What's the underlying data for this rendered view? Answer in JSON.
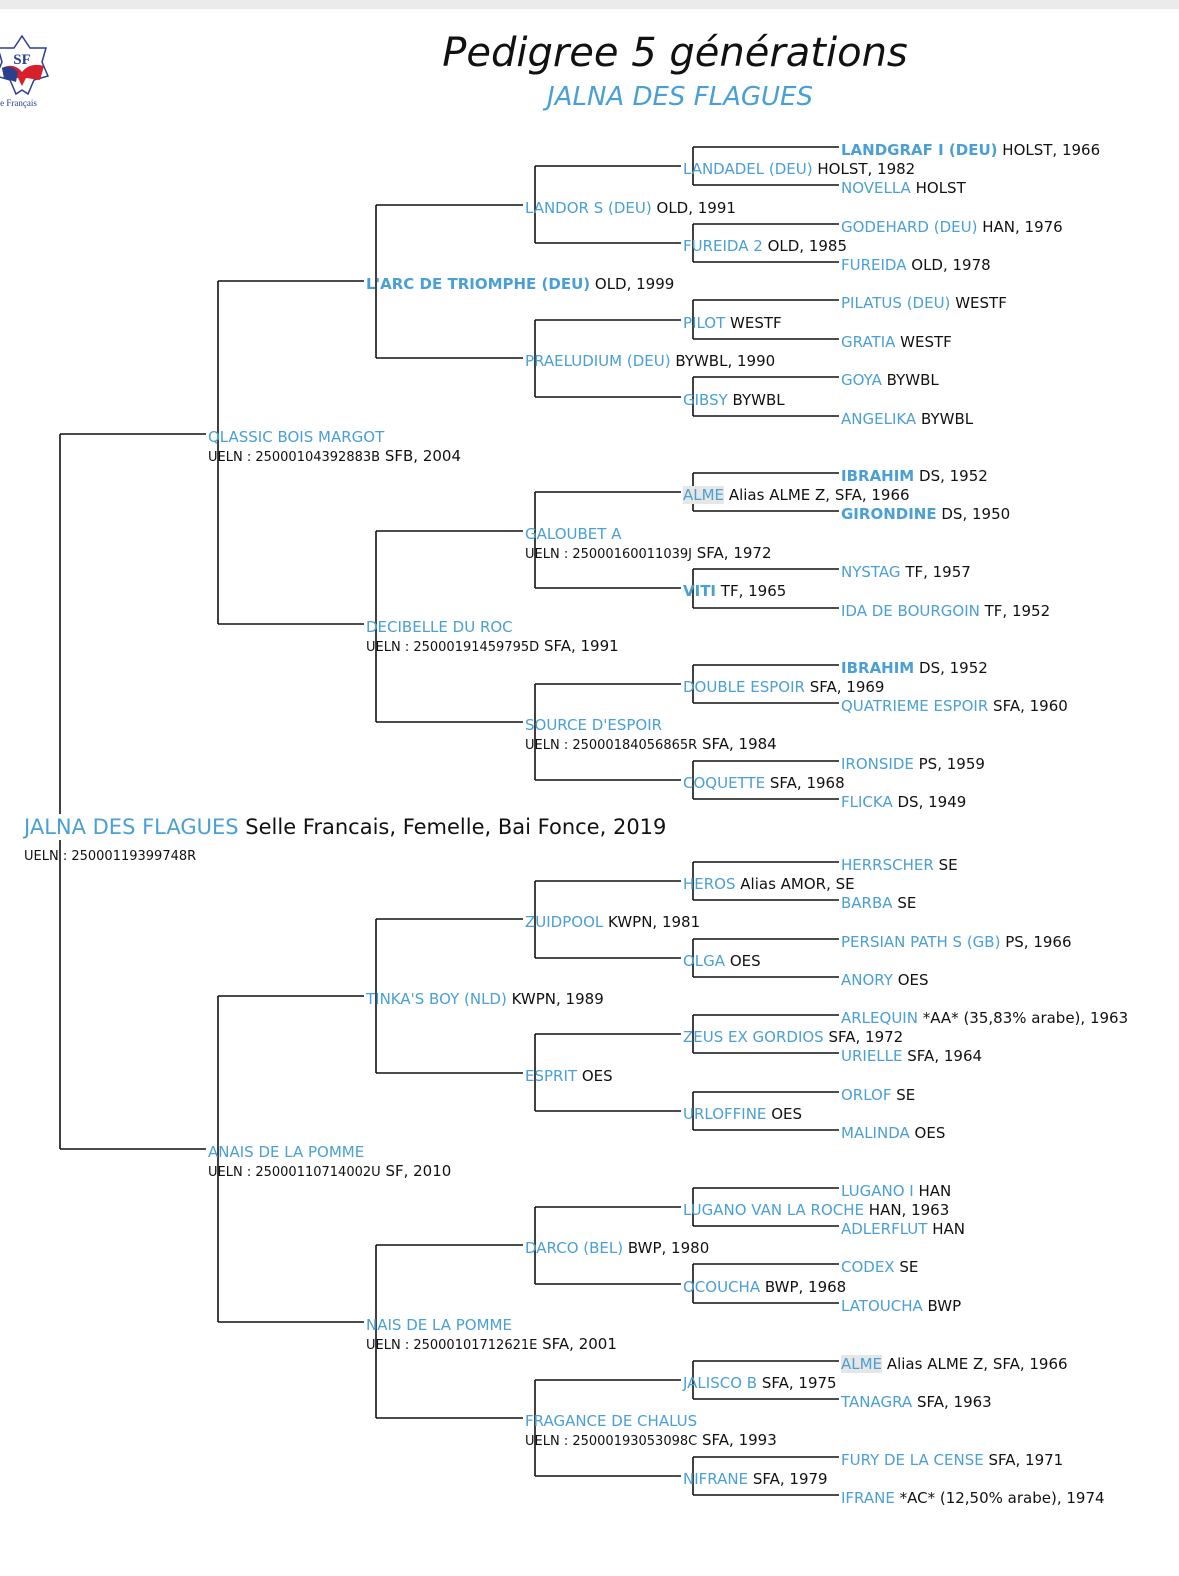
{
  "header": {
    "title": "Pedigree 5 générations",
    "subtitle": "JALNA DES FLAGUES"
  },
  "logo": {
    "text": "SF",
    "caption": "lle Français",
    "colors": {
      "blue": "#2b3f8f",
      "red": "#d6202a"
    }
  },
  "colors": {
    "name": "#4a9fd5",
    "text": "#111111",
    "line": "#111111"
  },
  "pedigree": {
    "name": "JALNA DES FLAGUES",
    "info": "Selle Francais, Femelle, Bai Fonce, 2019",
    "ueln": "UELN : 25000119399748R",
    "children": [
      {
        "name": "QLASSIC BOIS MARGOT",
        "ueln": "UELN : 25000104392883B",
        "info": "SFB, 2004",
        "children": [
          {
            "name": "L'ARC DE TRIOMPHE (DEU)",
            "bold": true,
            "info": "OLD, 1999",
            "children": [
              {
                "name": "LANDOR S (DEU)",
                "info": "OLD, 1991",
                "children": [
                  {
                    "name": "LANDADEL (DEU)",
                    "info": "HOLST, 1982",
                    "children": [
                      {
                        "name": "LANDGRAF I (DEU)",
                        "bold": true,
                        "info": "HOLST, 1966"
                      },
                      {
                        "name": "NOVELLA",
                        "info": "HOLST"
                      }
                    ]
                  },
                  {
                    "name": "FUREIDA 2",
                    "info": "OLD, 1985",
                    "children": [
                      {
                        "name": "GODEHARD (DEU)",
                        "info": "HAN, 1976"
                      },
                      {
                        "name": "FUREIDA",
                        "info": "OLD, 1978"
                      }
                    ]
                  }
                ]
              },
              {
                "name": "PRAELUDIUM (DEU)",
                "info": "BYWBL, 1990",
                "children": [
                  {
                    "name": "PILOT",
                    "info": "WESTF",
                    "children": [
                      {
                        "name": "PILATUS (DEU)",
                        "info": "WESTF"
                      },
                      {
                        "name": "GRATIA",
                        "info": "WESTF"
                      }
                    ]
                  },
                  {
                    "name": "GIBSY",
                    "info": "BYWBL",
                    "children": [
                      {
                        "name": "GOYA",
                        "info": "BYWBL"
                      },
                      {
                        "name": "ANGELIKA",
                        "info": "BYWBL"
                      }
                    ]
                  }
                ]
              }
            ]
          },
          {
            "name": "DECIBELLE DU ROC",
            "ueln": "UELN : 25000191459795D",
            "info": "SFA, 1991",
            "children": [
              {
                "name": "GALOUBET A",
                "ueln": "UELN : 25000160011039J",
                "info": "SFA, 1972",
                "children": [
                  {
                    "name": "ALME",
                    "highlight": true,
                    "info": "Alias ALME Z, SFA, 1966",
                    "children": [
                      {
                        "name": "IBRAHIM",
                        "bold": true,
                        "info": "DS, 1952"
                      },
                      {
                        "name": "GIRONDINE",
                        "bold": true,
                        "info": "DS, 1950"
                      }
                    ]
                  },
                  {
                    "name": "VITI",
                    "bold": true,
                    "info": "TF, 1965",
                    "children": [
                      {
                        "name": "NYSTAG",
                        "info": "TF, 1957"
                      },
                      {
                        "name": "IDA DE BOURGOIN",
                        "info": "TF, 1952"
                      }
                    ]
                  }
                ]
              },
              {
                "name": "SOURCE D'ESPOIR",
                "ueln": "UELN : 25000184056865R",
                "info": "SFA, 1984",
                "children": [
                  {
                    "name": "DOUBLE ESPOIR",
                    "info": "SFA, 1969",
                    "children": [
                      {
                        "name": "IBRAHIM",
                        "bold": true,
                        "info": "DS, 1952"
                      },
                      {
                        "name": "QUATRIEME ESPOIR",
                        "info": "SFA, 1960"
                      }
                    ]
                  },
                  {
                    "name": "COQUETTE",
                    "info": "SFA, 1968",
                    "children": [
                      {
                        "name": "IRONSIDE",
                        "info": "PS, 1959"
                      },
                      {
                        "name": "FLICKA",
                        "info": "DS, 1949"
                      }
                    ]
                  }
                ]
              }
            ]
          }
        ]
      },
      {
        "name": "ANAIS DE LA POMME",
        "ueln": "UELN : 25000110714002U",
        "info": "SF, 2010",
        "children": [
          {
            "name": "TINKA'S BOY (NLD)",
            "info": "KWPN, 1989",
            "children": [
              {
                "name": "ZUIDPOOL",
                "info": "KWPN, 1981",
                "children": [
                  {
                    "name": "HEROS",
                    "info": "Alias AMOR, SE",
                    "children": [
                      {
                        "name": "HERRSCHER",
                        "info": "SE"
                      },
                      {
                        "name": "BARBA",
                        "info": "SE"
                      }
                    ]
                  },
                  {
                    "name": "OLGA",
                    "info": "OES",
                    "children": [
                      {
                        "name": "PERSIAN PATH S (GB)",
                        "info": "PS, 1966"
                      },
                      {
                        "name": "ANORY",
                        "info": "OES"
                      }
                    ]
                  }
                ]
              },
              {
                "name": "ESPRIT",
                "info": "OES",
                "children": [
                  {
                    "name": "ZEUS EX GORDIOS",
                    "info": "SFA, 1972",
                    "children": [
                      {
                        "name": "ARLEQUIN",
                        "info": "*AA* (35,83% arabe), 1963"
                      },
                      {
                        "name": "URIELLE",
                        "info": "SFA, 1964"
                      }
                    ]
                  },
                  {
                    "name": "URLOFFINE",
                    "info": "OES",
                    "children": [
                      {
                        "name": "ORLOF",
                        "info": "SE"
                      },
                      {
                        "name": "MALINDA",
                        "info": "OES"
                      }
                    ]
                  }
                ]
              }
            ]
          },
          {
            "name": "NAIS DE LA POMME",
            "ueln": "UELN : 25000101712621E",
            "info": "SFA, 2001",
            "children": [
              {
                "name": "DARCO (BEL)",
                "info": "BWP, 1980",
                "children": [
                  {
                    "name": "LUGANO VAN LA ROCHE",
                    "info": "HAN, 1963",
                    "children": [
                      {
                        "name": "LUGANO I",
                        "info": "HAN"
                      },
                      {
                        "name": "ADLERFLUT",
                        "info": "HAN"
                      }
                    ]
                  },
                  {
                    "name": "OCOUCHA",
                    "info": "BWP, 1968",
                    "children": [
                      {
                        "name": "CODEX",
                        "info": "SE"
                      },
                      {
                        "name": "LATOUCHA",
                        "info": "BWP"
                      }
                    ]
                  }
                ]
              },
              {
                "name": "FRAGANCE DE CHALUS",
                "ueln": "UELN : 25000193053098C",
                "info": "SFA, 1993",
                "children": [
                  {
                    "name": "JALISCO B",
                    "info": "SFA, 1975",
                    "children": [
                      {
                        "name": "ALME",
                        "highlight": true,
                        "info": "Alias ALME Z, SFA, 1966"
                      },
                      {
                        "name": "TANAGRA",
                        "info": "SFA, 1963"
                      }
                    ]
                  },
                  {
                    "name": "NIFRANE",
                    "info": "SFA, 1979",
                    "children": [
                      {
                        "name": "FURY DE LA CENSE",
                        "info": "SFA, 1971"
                      },
                      {
                        "name": "IFRANE",
                        "info": "*AC* (12,50% arabe), 1974"
                      }
                    ]
                  }
                ]
              }
            ]
          }
        ]
      }
    ]
  }
}
